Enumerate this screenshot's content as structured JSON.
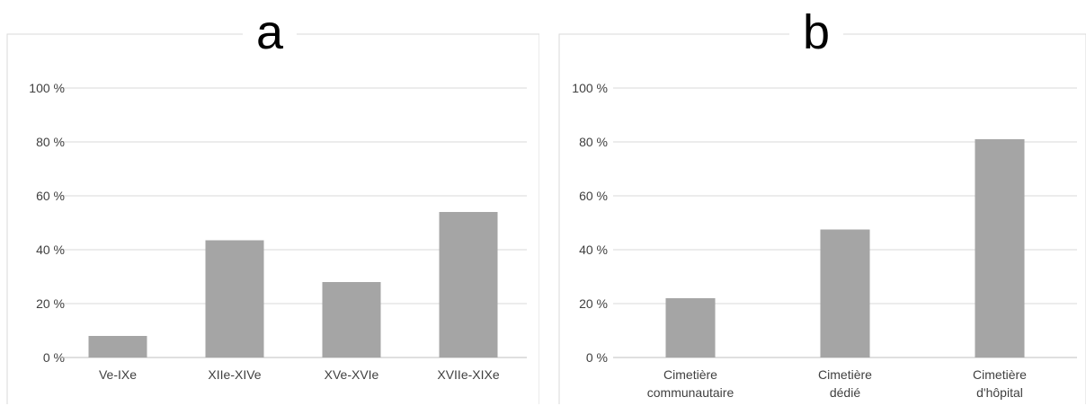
{
  "chart_data": [
    {
      "type": "bar",
      "title": "a",
      "categories": [
        [
          "Ve-IXe"
        ],
        [
          "XIIe-XIVe"
        ],
        [
          "XVe-XVIe"
        ],
        [
          "XVIIe-XIXe"
        ]
      ],
      "values": [
        8,
        43.5,
        28,
        54
      ],
      "ylim": [
        0,
        100
      ],
      "yticks": [
        "0 %",
        "20 %",
        "40 %",
        "60 %",
        "80 %",
        "100 %"
      ],
      "grid": true,
      "color": "#a5a5a5"
    },
    {
      "type": "bar",
      "title": "b",
      "categories": [
        [
          "Cimetière",
          "communautaire"
        ],
        [
          "Cimetière",
          "dédié"
        ],
        [
          "Cimetière",
          "d'hôpital"
        ]
      ],
      "values": [
        22,
        47.5,
        81
      ],
      "ylim": [
        0,
        100
      ],
      "yticks": [
        "0 %",
        "20 %",
        "40 %",
        "60 %",
        "80 %",
        "100 %"
      ],
      "grid": true,
      "color": "#a5a5a5"
    }
  ]
}
